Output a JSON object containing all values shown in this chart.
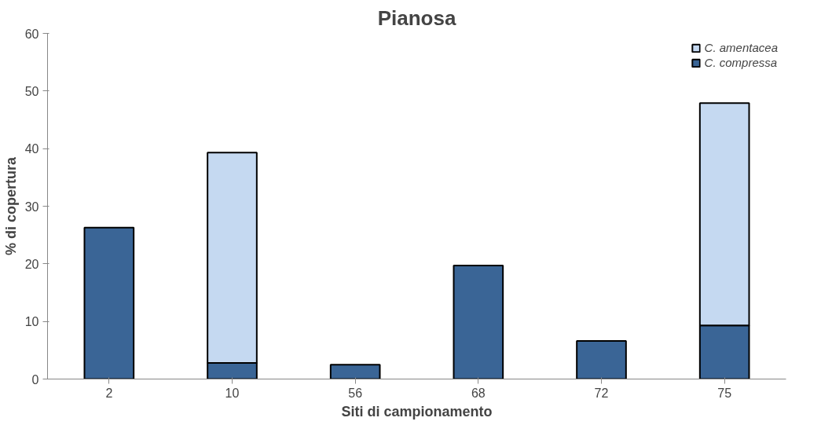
{
  "chart_data": {
    "type": "bar",
    "title": "Pianosa",
    "xlabel": "Siti di campionamento",
    "ylabel": "% di copertura",
    "categories": [
      "2",
      "10",
      "56",
      "68",
      "72",
      "75"
    ],
    "stacked": true,
    "series": [
      {
        "name": "C. compressa",
        "color": "#3a6596",
        "values": [
          26.3,
          2.8,
          2.5,
          19.7,
          6.6,
          9.3
        ]
      },
      {
        "name": "C. amentacea",
        "color": "#c5d9f1",
        "values": [
          null,
          36.5,
          null,
          null,
          null,
          38.6
        ]
      }
    ],
    "ylim": [
      0,
      60
    ],
    "yticks": [
      0,
      10,
      20,
      30,
      40,
      50,
      60
    ],
    "grid": false,
    "legend": "top right"
  }
}
